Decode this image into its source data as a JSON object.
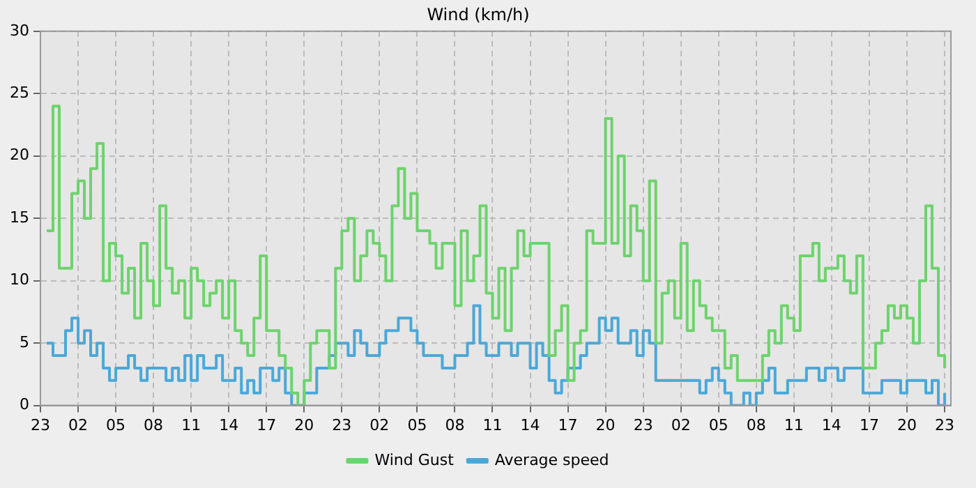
{
  "chart_data": {
    "type": "step",
    "title": "Wind (km/h)",
    "x": [
      "--01-01T23:30",
      "--01-02T00:00",
      "--01-02T00:30",
      "--01-02T01:00",
      "--01-02T01:30",
      "--01-02T02:00",
      "--01-02T02:30",
      "--01-02T03:00",
      "--01-02T03:30",
      "--01-02T04:00",
      "--01-02T04:30",
      "--01-02T05:00",
      "--01-02T05:30",
      "--01-02T06:00",
      "--01-02T06:30",
      "--01-02T07:00",
      "--01-02T07:30",
      "--01-02T08:00",
      "--01-02T08:30",
      "--01-02T09:00",
      "--01-02T09:30",
      "--01-02T10:00",
      "--01-02T10:30",
      "--01-02T11:00",
      "--01-02T11:30",
      "--01-02T12:00",
      "--01-02T12:30",
      "--01-02T13:00",
      "--01-02T13:30",
      "--01-02T14:00",
      "--01-02T14:30",
      "--01-02T15:00",
      "--01-02T15:30",
      "--01-02T16:00",
      "--01-02T16:30",
      "--01-02T17:00",
      "--01-02T17:30",
      "--01-02T18:00",
      "--01-02T18:30",
      "--01-02T19:00",
      "--01-02T19:30",
      "--01-02T20:00",
      "--01-02T20:30",
      "--01-02T21:00",
      "--01-02T21:30",
      "--01-02T22:00",
      "--01-02T22:30",
      "--01-02T23:00",
      "--01-02T23:30",
      "--01-03T00:00",
      "--01-03T00:30",
      "--01-03T01:00",
      "--01-03T01:30",
      "--01-03T02:00",
      "--01-03T02:30",
      "--01-03T03:00",
      "--01-03T03:30",
      "--01-03T04:00",
      "--01-03T04:30",
      "--01-03T05:00",
      "--01-03T05:30",
      "--01-03T06:00",
      "--01-03T06:30",
      "--01-03T07:00",
      "--01-03T07:30",
      "--01-03T08:00",
      "--01-03T08:30",
      "--01-03T09:00",
      "--01-03T09:30",
      "--01-03T10:00",
      "--01-03T10:30",
      "--01-03T11:00",
      "--01-03T11:30",
      "--01-03T12:00",
      "--01-03T12:30",
      "--01-03T13:00",
      "--01-03T13:30",
      "--01-03T14:00",
      "--01-03T14:30",
      "--01-03T15:00",
      "--01-03T15:30",
      "--01-03T16:00",
      "--01-03T16:30",
      "--01-03T17:00",
      "--01-03T17:30",
      "--01-03T18:00",
      "--01-03T18:30",
      "--01-03T19:00",
      "--01-03T19:30",
      "--01-03T20:00",
      "--01-03T20:30",
      "--01-03T21:00",
      "--01-03T21:30",
      "--01-03T22:00",
      "--01-03T22:30",
      "--01-03T23:00",
      "--01-03T23:30",
      "--01-04T00:00",
      "--01-04T00:30",
      "--01-04T01:00",
      "--01-04T01:30",
      "--01-04T02:00",
      "--01-04T02:30",
      "--01-04T03:00",
      "--01-04T03:30",
      "--01-04T04:00",
      "--01-04T04:30",
      "--01-04T05:00",
      "--01-04T05:30",
      "--01-04T06:00",
      "--01-04T06:30",
      "--01-04T07:00",
      "--01-04T07:30",
      "--01-04T08:00",
      "--01-04T08:30",
      "--01-04T09:00",
      "--01-04T09:30",
      "--01-04T10:00",
      "--01-04T10:30",
      "--01-04T11:00",
      "--01-04T11:30",
      "--01-04T12:00",
      "--01-04T12:30",
      "--01-04T13:00",
      "--01-04T13:30",
      "--01-04T14:00",
      "--01-04T14:30",
      "--01-04T15:00",
      "--01-04T15:30",
      "--01-04T16:00",
      "--01-04T16:30",
      "--01-04T17:00",
      "--01-04T17:30",
      "--01-04T18:00",
      "--01-04T18:30",
      "--01-04T19:00",
      "--01-04T19:30",
      "--01-04T20:00",
      "--01-04T20:30",
      "--01-04T21:00",
      "--01-04T21:30",
      "--01-04T22:00",
      "--01-04T22:30",
      "--01-04T23:00"
    ],
    "series": [
      {
        "name": "Wind Gust",
        "color": "#6dd36d",
        "values": [
          14,
          24,
          11,
          11,
          17,
          18,
          15,
          19,
          21,
          10,
          13,
          12,
          9,
          11,
          7,
          13,
          10,
          8,
          16,
          11,
          9,
          10,
          7,
          11,
          10,
          8,
          9,
          10,
          7,
          10,
          6,
          5,
          4,
          7,
          12,
          6,
          6,
          4,
          3,
          1,
          0,
          2,
          5,
          6,
          6,
          3,
          11,
          14,
          15,
          10,
          12,
          14,
          13,
          12,
          10,
          16,
          19,
          15,
          17,
          14,
          14,
          13,
          11,
          13,
          13,
          8,
          14,
          10,
          12,
          16,
          9,
          7,
          11,
          6,
          11,
          14,
          12,
          13,
          13,
          13,
          4,
          6,
          8,
          2,
          5,
          6,
          14,
          13,
          13,
          23,
          13,
          20,
          12,
          16,
          14,
          10,
          18,
          5,
          9,
          10,
          7,
          13,
          6,
          10,
          8,
          7,
          6,
          6,
          3,
          4,
          2,
          2,
          2,
          2,
          4,
          6,
          5,
          8,
          7,
          6,
          12,
          12,
          13,
          10,
          11,
          11,
          12,
          10,
          9,
          12,
          3,
          3,
          5,
          6,
          8,
          7,
          8,
          7,
          5,
          10,
          16,
          11,
          4,
          3
        ]
      },
      {
        "name": "Average speed",
        "color": "#4aa8d8",
        "values": [
          5,
          4,
          4,
          6,
          7,
          5,
          6,
          4,
          5,
          3,
          2,
          3,
          3,
          4,
          3,
          2,
          3,
          3,
          3,
          2,
          3,
          2,
          4,
          2,
          4,
          3,
          3,
          4,
          2,
          2,
          3,
          1,
          2,
          1,
          3,
          3,
          2,
          3,
          1,
          0,
          0,
          1,
          1,
          3,
          3,
          4,
          5,
          5,
          4,
          6,
          5,
          4,
          4,
          5,
          6,
          6,
          7,
          7,
          6,
          5,
          4,
          4,
          4,
          3,
          3,
          4,
          4,
          5,
          8,
          5,
          4,
          4,
          5,
          5,
          4,
          5,
          5,
          3,
          5,
          4,
          2,
          1,
          2,
          3,
          3,
          4,
          5,
          5,
          7,
          6,
          7,
          5,
          5,
          6,
          4,
          6,
          5,
          2,
          2,
          2,
          2,
          2,
          2,
          2,
          1,
          2,
          3,
          2,
          1,
          0,
          0,
          1,
          0,
          1,
          2,
          3,
          1,
          1,
          2,
          2,
          2,
          3,
          3,
          2,
          3,
          3,
          2,
          3,
          3,
          3,
          1,
          1,
          1,
          2,
          2,
          2,
          1,
          2,
          2,
          2,
          1,
          2,
          0,
          1
        ]
      }
    ],
    "xlim": [
      "--01-01T23:00",
      "--01-04T23:30"
    ],
    "xticks": [
      {
        "value": "--01-01T23:00",
        "label": "23"
      },
      {
        "value": "--01-02T02:00",
        "label": "02"
      },
      {
        "value": "--01-02T05:00",
        "label": "05"
      },
      {
        "value": "--01-02T08:00",
        "label": "08"
      },
      {
        "value": "--01-02T11:00",
        "label": "11"
      },
      {
        "value": "--01-02T14:00",
        "label": "14"
      },
      {
        "value": "--01-02T17:00",
        "label": "17"
      },
      {
        "value": "--01-02T20:00",
        "label": "20"
      },
      {
        "value": "--01-02T23:00",
        "label": "23"
      },
      {
        "value": "--01-03T02:00",
        "label": "02"
      },
      {
        "value": "--01-03T05:00",
        "label": "05"
      },
      {
        "value": "--01-03T08:00",
        "label": "08"
      },
      {
        "value": "--01-03T11:00",
        "label": "11"
      },
      {
        "value": "--01-03T14:00",
        "label": "14"
      },
      {
        "value": "--01-03T17:00",
        "label": "17"
      },
      {
        "value": "--01-03T20:00",
        "label": "20"
      },
      {
        "value": "--01-03T23:00",
        "label": "23"
      },
      {
        "value": "--01-04T02:00",
        "label": "02"
      },
      {
        "value": "--01-04T05:00",
        "label": "05"
      },
      {
        "value": "--01-04T08:00",
        "label": "08"
      },
      {
        "value": "--01-04T11:00",
        "label": "11"
      },
      {
        "value": "--01-04T14:00",
        "label": "14"
      },
      {
        "value": "--01-04T17:00",
        "label": "17"
      },
      {
        "value": "--01-04T20:00",
        "label": "20"
      },
      {
        "value": "--01-04T23:00",
        "label": "23"
      }
    ],
    "ylim": [
      0,
      30
    ],
    "yticks": [
      0,
      5,
      10,
      15,
      20,
      25,
      30
    ],
    "grid": true,
    "legend": "bottom",
    "line_style": "solid",
    "marker": "none"
  }
}
